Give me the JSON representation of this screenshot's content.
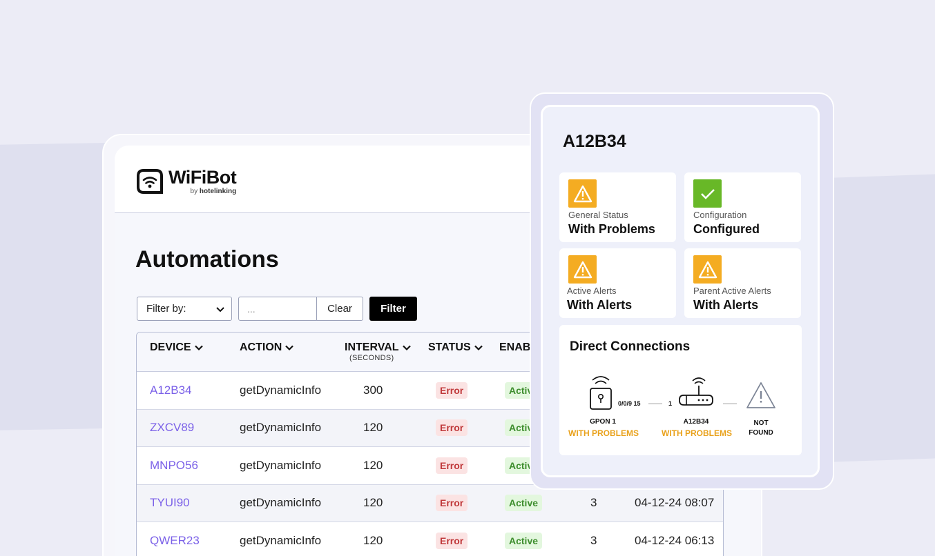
{
  "app": {
    "brand": "WiFiBot",
    "brand_by": "by",
    "brand_company": "hotelinking",
    "page_title": "Automations"
  },
  "filters": {
    "filter_by_label": "Filter by:",
    "search_value": "...",
    "clear_label": "Clear",
    "filter_label": "Filter"
  },
  "table": {
    "headers": {
      "device": "DEVICE",
      "action": "ACTION",
      "interval": "INTERVAL",
      "interval_sub": "(SECONDS)",
      "status": "STATUS",
      "enabled": "ENAB"
    },
    "rows": [
      {
        "device": "A12B34",
        "action": "getDynamicInfo",
        "interval": "300",
        "status": "Error",
        "enabled": "Activ",
        "count": "",
        "date": ""
      },
      {
        "device": "ZXCV89",
        "action": "getDynamicInfo",
        "interval": "120",
        "status": "Error",
        "enabled": "Activ",
        "count": "",
        "date": ""
      },
      {
        "device": "MNPO56",
        "action": "getDynamicInfo",
        "interval": "120",
        "status": "Error",
        "enabled": "Activ",
        "count": "",
        "date": ""
      },
      {
        "device": "TYUI90",
        "action": "getDynamicInfo",
        "interval": "120",
        "status": "Error",
        "enabled": "Active",
        "count": "3",
        "date": "04-12-24 08:07"
      },
      {
        "device": "QWER23",
        "action": "getDynamicInfo",
        "interval": "120",
        "status": "Error",
        "enabled": "Active",
        "count": "3",
        "date": "04-12-24 06:13"
      }
    ]
  },
  "detail": {
    "title": "A12B34",
    "cards": [
      {
        "label": "General Status",
        "value": "With Problems",
        "icon": "warning-icon"
      },
      {
        "label": "Configuration",
        "value": "Configured",
        "icon": "check-icon"
      },
      {
        "label": "Active Alerts",
        "value": "With Alerts",
        "icon": "warning-icon"
      },
      {
        "label": "Parent Active Alerts",
        "value": "With Alerts",
        "icon": "warning-icon"
      }
    ],
    "connections": {
      "title": "Direct Connections",
      "nodes": [
        {
          "name": "GPON 1",
          "status": "WITH PROBLEMS",
          "icon": "gpon-icon"
        },
        {
          "name": "A12B34",
          "status": "WITH PROBLEMS",
          "icon": "router-icon"
        },
        {
          "name_line1": "NOT",
          "name_line2": "FOUND",
          "icon": "warning-outline-icon"
        }
      ],
      "edges": [
        "0/0/9 15",
        "1"
      ]
    }
  },
  "colors": {
    "device_link": "#7b61e8",
    "warning": "#f4ac22",
    "ok": "#68b827",
    "error_badge": "#c0393b",
    "active_badge": "#3e8e2e",
    "problem_status": "#e9a21c"
  }
}
